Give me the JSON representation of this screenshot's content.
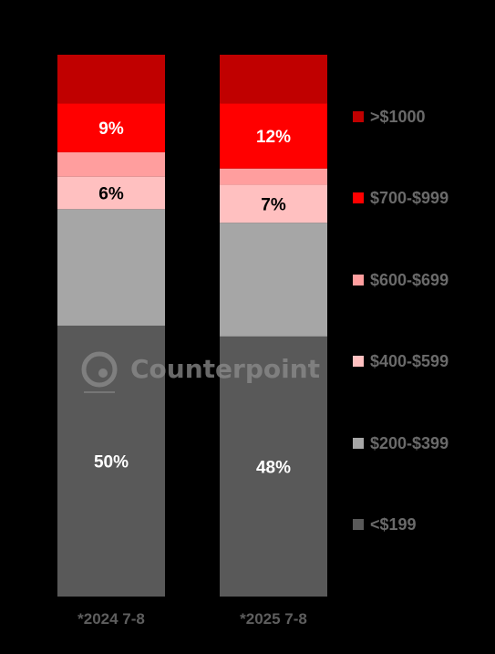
{
  "chart_data": {
    "type": "stacked-bar",
    "categories": [
      "*2024 7-8",
      "*2025 7-8"
    ],
    "series": [
      {
        "name": "<$199",
        "color": "#595959",
        "values": [
          50,
          48
        ],
        "labels": [
          "50%",
          "48%"
        ]
      },
      {
        "name": "$200-$399",
        "color": "#a6a6a6",
        "values": [
          21.5,
          21
        ],
        "labels": [
          "",
          ""
        ]
      },
      {
        "name": "$400-$599",
        "color": "#ffc0c0",
        "values": [
          6,
          7
        ],
        "labels": [
          "6%",
          "7%"
        ]
      },
      {
        "name": "$600-$699",
        "color": "#ff9e9e",
        "values": [
          4.5,
          3
        ],
        "labels": [
          "",
          ""
        ]
      },
      {
        "name": "$700-$999",
        "color": "#ff0000",
        "values": [
          9,
          12
        ],
        "labels": [
          "9%",
          "12%"
        ]
      },
      {
        "name": ">$1000",
        "color": "#c00000",
        "values": [
          9,
          9
        ],
        "labels": [
          "",
          ""
        ]
      }
    ],
    "ylim": [
      0,
      100
    ],
    "legend_placement": "right",
    "legend_order": [
      ">$1000",
      "$700-$999",
      "$600-$699",
      "$400-$599",
      "$200-$399",
      "<$199"
    ]
  },
  "watermark": {
    "text": "Counterpoint"
  }
}
